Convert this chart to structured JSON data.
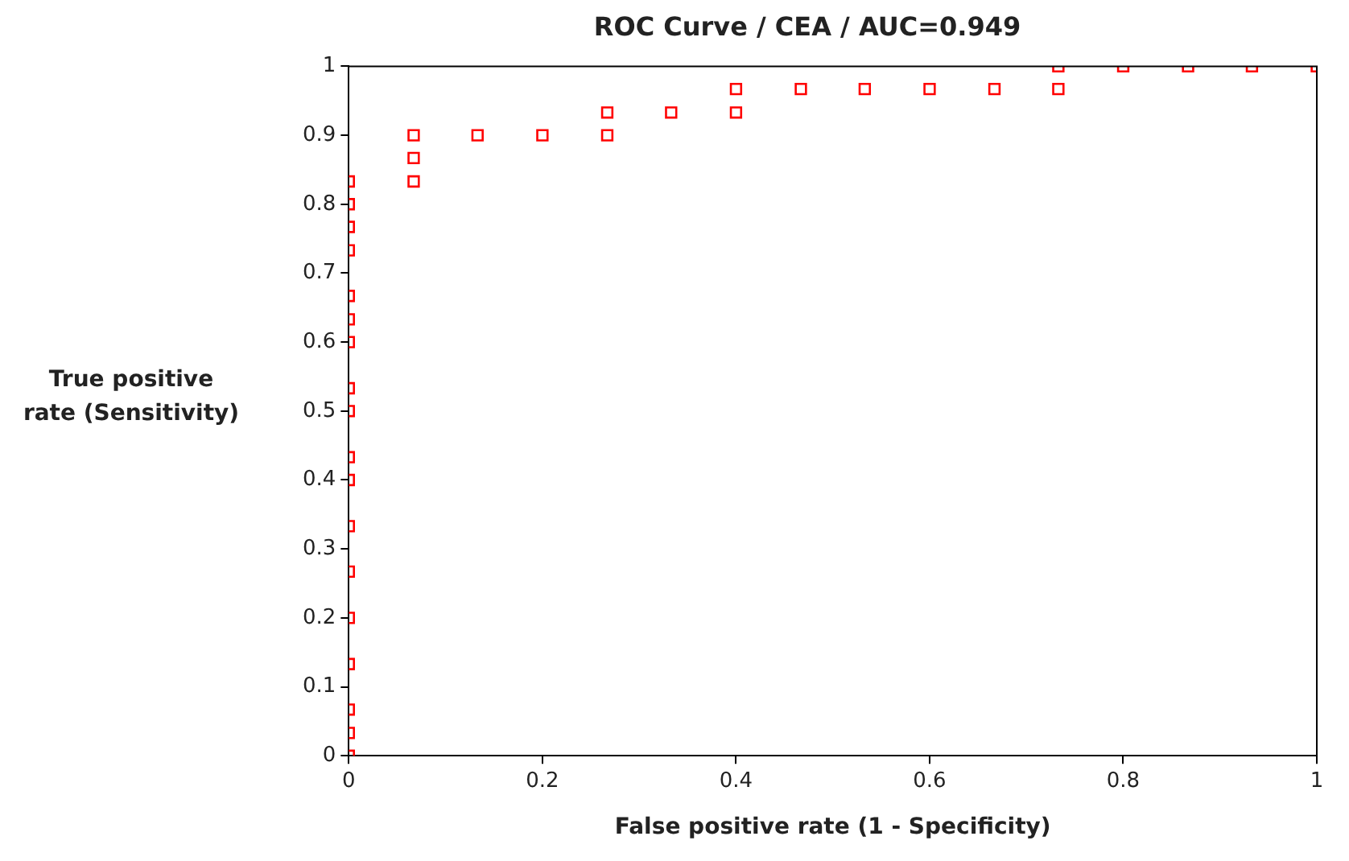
{
  "chart_data": {
    "type": "scatter",
    "title": "ROC Curve / CEA / AUC=0.949",
    "xlabel": "False positive rate (1 - Specificity)",
    "ylabel": "True positive rate (Sensitivity)",
    "x": [
      0,
      0,
      0,
      0,
      0,
      0,
      0,
      0,
      0,
      0,
      0,
      0,
      0,
      0,
      0,
      0,
      0,
      0,
      0.067,
      0.067,
      0.067,
      0.133,
      0.2,
      0.267,
      0.267,
      0.333,
      0.4,
      0.4,
      0.467,
      0.533,
      0.6,
      0.667,
      0.733,
      0.733,
      0.8,
      0.867,
      0.933,
      1
    ],
    "series": [
      {
        "color": "#ff0000",
        "values": [
          0,
          0.033,
          0.067,
          0.133,
          0.2,
          0.267,
          0.333,
          0.4,
          0.433,
          0.5,
          0.533,
          0.6,
          0.633,
          0.667,
          0.733,
          0.767,
          0.8,
          0.833,
          0.833,
          0.867,
          0.9,
          0.9,
          0.9,
          0.9,
          0.933,
          0.933,
          0.933,
          0.967,
          0.967,
          0.967,
          0.967,
          0.967,
          0.967,
          1,
          1,
          1,
          1,
          1
        ]
      }
    ],
    "xlim": [
      0,
      1
    ],
    "xticks": [
      0,
      0.2,
      0.4,
      0.6,
      0.8,
      1
    ],
    "ylim": [
      0,
      1
    ],
    "yticks": [
      0,
      0.1,
      0.2,
      0.3,
      0.4,
      0.5,
      0.6,
      0.7,
      0.8,
      0.9,
      1
    ],
    "grid": false,
    "legend": false,
    "marker": "square"
  }
}
